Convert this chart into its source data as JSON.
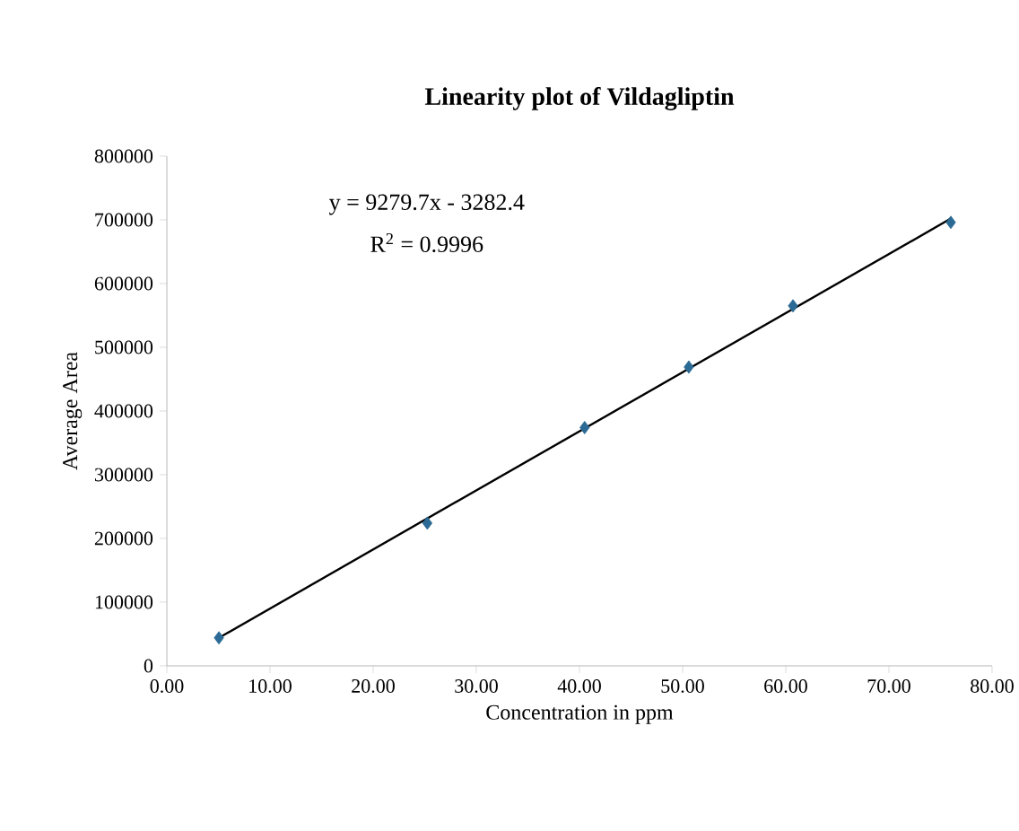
{
  "chart_data": {
    "type": "scatter",
    "title": "Linearity plot of Vildagliptin",
    "xlabel": "Concentration in ppm",
    "ylabel": "Average  Area",
    "xlim": [
      0,
      80
    ],
    "xticks": [
      {
        "value": 0,
        "label": "0.00"
      },
      {
        "value": 10,
        "label": "10.00"
      },
      {
        "value": 20,
        "label": "20.00"
      },
      {
        "value": 30,
        "label": "30.00"
      },
      {
        "value": 40,
        "label": "40.00"
      },
      {
        "value": 50,
        "label": "50.00"
      },
      {
        "value": 60,
        "label": "60.00"
      },
      {
        "value": 70,
        "label": "70.00"
      },
      {
        "value": 80,
        "label": "80.00"
      }
    ],
    "ylim": [
      0,
      800000
    ],
    "yticks": [
      0,
      100000,
      200000,
      300000,
      400000,
      500000,
      600000,
      700000,
      800000
    ],
    "marker": "diamond",
    "grid": false,
    "annotations": [
      "y = 9279.7x - 3282.4",
      "R$^{2}$ = 0.9996"
    ],
    "series": [
      {
        "color": "#2a6a94",
        "x": [
          5.05,
          25.25,
          40.5,
          50.6,
          60.7,
          76.0
        ],
        "values": [
          44000,
          224000,
          374000,
          469000,
          565000,
          696000
        ]
      },
      {
        "type": "line",
        "color": "#000000",
        "marker": "none",
        "x": [
          5.05,
          76.0
        ],
        "values": [
          44000,
          702000
        ]
      }
    ]
  }
}
